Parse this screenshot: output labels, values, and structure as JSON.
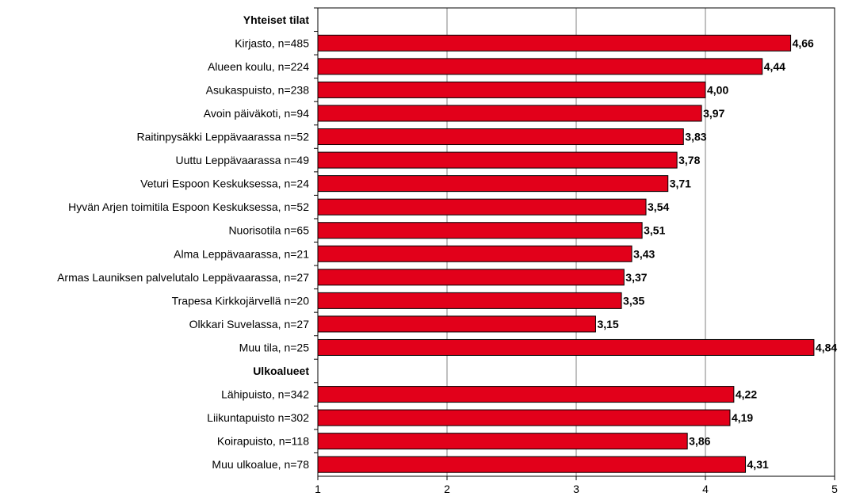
{
  "chart_data": {
    "type": "bar",
    "orientation": "horizontal",
    "xlim": [
      1,
      5
    ],
    "ticks": [
      "1",
      "2",
      "3",
      "4",
      "5"
    ],
    "grid": true,
    "bar_color": "#E2001A",
    "categories": [
      "Yhteiset tilat",
      "Kirjasto, n=485",
      "Alueen koulu, n=224",
      "Asukaspuisto, n=238",
      "Avoin päiväkoti, n=94",
      "Raitinpysäkki Leppävaarassa n=52",
      "Uuttu Leppävaarassa n=49",
      "Veturi Espoon Keskuksessa, n=24",
      "Hyvän Arjen toimitila Espoon Keskuksessa, n=52",
      "Nuorisotila  n=65",
      "Alma Leppävaarassa, n=21",
      "Armas Launiksen palvelutalo Leppävaarassa, n=27",
      "Trapesa Kirkkojärvellä n=20",
      "Olkkari Suvelassa, n=27",
      "Muu tila, n=25",
      "Ulkoalueet",
      "Lähipuisto, n=342",
      "Liikuntapuisto n=302",
      "Koirapuisto, n=118",
      "Muu ulkoalue, n=78"
    ],
    "headers": [
      true,
      false,
      false,
      false,
      false,
      false,
      false,
      false,
      false,
      false,
      false,
      false,
      false,
      false,
      false,
      true,
      false,
      false,
      false,
      false
    ],
    "values": [
      null,
      4.66,
      4.44,
      4.0,
      3.97,
      3.83,
      3.78,
      3.71,
      3.54,
      3.51,
      3.43,
      3.37,
      3.35,
      3.15,
      4.84,
      null,
      4.22,
      4.19,
      3.86,
      4.31
    ],
    "value_labels": [
      "",
      "4,66",
      "4,44",
      "4,00",
      "3,97",
      "3,83",
      "3,78",
      "3,71",
      "3,54",
      "3,51",
      "3,43",
      "3,37",
      "3,35",
      "3,15",
      "4,84",
      "",
      "4,22",
      "4,19",
      "3,86",
      "4,31"
    ]
  }
}
